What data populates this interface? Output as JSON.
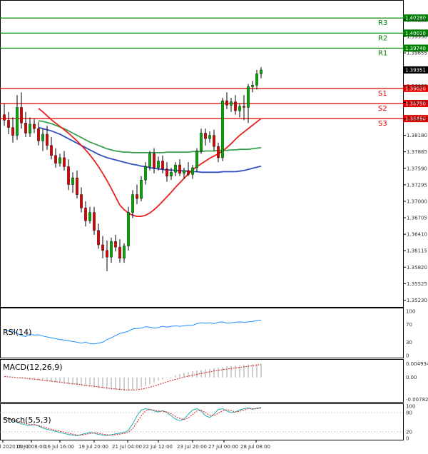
{
  "chart_data": {
    "type": "candlestick",
    "main": {
      "y_ticks": [
        "1.40245",
        "1.39950",
        "1.39655",
        "1.39360",
        "1.39065",
        "1.38770",
        "1.38475",
        "1.38180",
        "1.37885",
        "1.37590",
        "1.37295",
        "1.37000",
        "1.36705",
        "1.36410",
        "1.36115",
        "1.35820",
        "1.35525",
        "1.35230"
      ],
      "ylim": [
        1.3516,
        1.405
      ],
      "current_price": {
        "label": "1.39351",
        "value": 1.39351
      },
      "levels": [
        {
          "name": "R3",
          "label": "1.40280",
          "value": 1.4028,
          "kind": "resistance",
          "color": "#008000"
        },
        {
          "name": "R2",
          "label": "1.40010",
          "value": 1.4001,
          "kind": "resistance",
          "color": "#008000"
        },
        {
          "name": "R1",
          "label": "1.39740",
          "value": 1.3974,
          "kind": "resistance",
          "color": "#008000"
        },
        {
          "name": "S1",
          "label": "1.39020",
          "value": 1.3902,
          "kind": "support",
          "color": "#e00000"
        },
        {
          "name": "S2",
          "label": "1.38750",
          "value": 1.3875,
          "kind": "support",
          "color": "#e00000"
        },
        {
          "name": "S3",
          "label": "1.38480",
          "value": 1.3848,
          "kind": "support",
          "color": "#e00000"
        }
      ],
      "candles": [
        [
          1.3855,
          1.3875,
          1.3835,
          1.3845
        ],
        [
          1.3845,
          1.386,
          1.382,
          1.3832
        ],
        [
          1.3832,
          1.385,
          1.3805,
          1.3818
        ],
        [
          1.3818,
          1.389,
          1.381,
          1.3868
        ],
        [
          1.3868,
          1.3895,
          1.383,
          1.384
        ],
        [
          1.384,
          1.386,
          1.3815,
          1.3822
        ],
        [
          1.3822,
          1.385,
          1.3815,
          1.3838
        ],
        [
          1.3838,
          1.3848,
          1.3822,
          1.383
        ],
        [
          1.383,
          1.3842,
          1.38,
          1.3808
        ],
        [
          1.3808,
          1.383,
          1.379,
          1.382
        ],
        [
          1.382,
          1.3835,
          1.3792,
          1.38
        ],
        [
          1.38,
          1.3815,
          1.3775,
          1.3782
        ],
        [
          1.3782,
          1.3795,
          1.376,
          1.3768
        ],
        [
          1.3768,
          1.3785,
          1.3762,
          1.3778
        ],
        [
          1.3778,
          1.379,
          1.3755,
          1.3762
        ],
        [
          1.3762,
          1.3775,
          1.372,
          1.373
        ],
        [
          1.373,
          1.3752,
          1.3715,
          1.3742
        ],
        [
          1.3742,
          1.3755,
          1.3705,
          1.3712
        ],
        [
          1.3712,
          1.3725,
          1.368,
          1.3688
        ],
        [
          1.3688,
          1.37,
          1.3655,
          1.3665
        ],
        [
          1.3665,
          1.369,
          1.366,
          1.368
        ],
        [
          1.368,
          1.369,
          1.364,
          1.3648
        ],
        [
          1.3648,
          1.366,
          1.3615,
          1.3622
        ],
        [
          1.3622,
          1.3638,
          1.3598,
          1.3612
        ],
        [
          1.3612,
          1.363,
          1.3575,
          1.36
        ],
        [
          1.36,
          1.3635,
          1.359,
          1.3628
        ],
        [
          1.3628,
          1.364,
          1.361,
          1.3618
        ],
        [
          1.3618,
          1.3632,
          1.359,
          1.3598
        ],
        [
          1.3598,
          1.3625,
          1.359,
          1.362
        ],
        [
          1.362,
          1.369,
          1.3612,
          1.368
        ],
        [
          1.368,
          1.372,
          1.367,
          1.3712
        ],
        [
          1.3712,
          1.373,
          1.3695,
          1.3705
        ],
        [
          1.3705,
          1.3745,
          1.37,
          1.3738
        ],
        [
          1.3738,
          1.377,
          1.373,
          1.3762
        ],
        [
          1.3762,
          1.379,
          1.3755,
          1.3785
        ],
        [
          1.3785,
          1.3795,
          1.375,
          1.376
        ],
        [
          1.376,
          1.378,
          1.3755,
          1.3772
        ],
        [
          1.3772,
          1.3782,
          1.375,
          1.3758
        ],
        [
          1.3758,
          1.377,
          1.3735,
          1.3745
        ],
        [
          1.3745,
          1.376,
          1.3738,
          1.3752
        ],
        [
          1.3752,
          1.377,
          1.3745,
          1.3765
        ],
        [
          1.3765,
          1.3775,
          1.3745,
          1.375
        ],
        [
          1.375,
          1.376,
          1.374,
          1.3755
        ],
        [
          1.3755,
          1.377,
          1.3745,
          1.3748
        ],
        [
          1.3748,
          1.3765,
          1.374,
          1.376
        ],
        [
          1.376,
          1.3795,
          1.3752,
          1.379
        ],
        [
          1.379,
          1.383,
          1.3785,
          1.3822
        ],
        [
          1.3822,
          1.383,
          1.38,
          1.3812
        ],
        [
          1.3812,
          1.3825,
          1.3805,
          1.3818
        ],
        [
          1.3818,
          1.3828,
          1.379,
          1.3798
        ],
        [
          1.3798,
          1.3805,
          1.377,
          1.3778
        ],
        [
          1.3778,
          1.3885,
          1.3772,
          1.388
        ],
        [
          1.388,
          1.3895,
          1.3865,
          1.3872
        ],
        [
          1.3872,
          1.3885,
          1.386,
          1.3878
        ],
        [
          1.3878,
          1.389,
          1.3855,
          1.3862
        ],
        [
          1.3862,
          1.3875,
          1.385,
          1.387
        ],
        [
          1.387,
          1.389,
          1.3845,
          1.3868
        ],
        [
          1.3868,
          1.391,
          1.384,
          1.3905
        ],
        [
          1.3905,
          1.3915,
          1.3895,
          1.3908
        ],
        [
          1.3908,
          1.3935,
          1.39,
          1.3928
        ],
        [
          1.3928,
          1.394,
          1.392,
          1.3935
        ]
      ],
      "ma_fast": [
        1.3866,
        1.386,
        1.3853,
        1.3846,
        1.384,
        1.3834,
        1.3828,
        1.3822,
        1.3815,
        1.3808,
        1.38,
        1.3792,
        1.3783,
        1.3773,
        1.3762,
        1.375,
        1.3737,
        1.3723,
        1.3708,
        1.3693,
        1.3685,
        1.3679,
        1.3675,
        1.3673,
        1.3673,
        1.3675,
        1.3679,
        1.3685,
        1.3692,
        1.37,
        1.3708,
        1.3716,
        1.3725,
        1.3733,
        1.3741,
        1.3749,
        1.3756,
        1.3762,
        1.3767,
        1.3772,
        1.3777,
        1.3781,
        1.3785,
        1.379,
        1.3796,
        1.3803,
        1.3811,
        1.3818,
        1.3824,
        1.383,
        1.3836,
        1.3842,
        1.3848
      ],
      "ma_mid": [
        1.3844,
        1.3843,
        1.3841,
        1.3839,
        1.3836,
        1.3833,
        1.383,
        1.3826,
        1.3822,
        1.3818,
        1.3814,
        1.381,
        1.3806,
        1.3803,
        1.38,
        1.3797,
        1.3794,
        1.3792,
        1.379,
        1.3789,
        1.3788,
        1.3788,
        1.3787,
        1.3787,
        1.3787,
        1.3787,
        1.3787,
        1.3787,
        1.3787,
        1.3787,
        1.3788,
        1.3788,
        1.3788,
        1.3788,
        1.3788,
        1.3788,
        1.3789,
        1.3789,
        1.3789,
        1.379,
        1.379,
        1.379,
        1.3791,
        1.3791,
        1.3791,
        1.3792,
        1.3792,
        1.3793,
        1.3793,
        1.3793,
        1.3794,
        1.3795,
        1.3796
      ],
      "ma_slow": [
        1.3832,
        1.383,
        1.3828,
        1.3826,
        1.3823,
        1.382,
        1.3816,
        1.3812,
        1.3808,
        1.3804,
        1.38,
        1.3796,
        1.3792,
        1.3788,
        1.3784,
        1.3781,
        1.3778,
        1.3776,
        1.3774,
        1.3772,
        1.377,
        1.3768,
        1.3766,
        1.3765,
        1.3763,
        1.3762,
        1.376,
        1.3759,
        1.3758,
        1.3757,
        1.3756,
        1.3756,
        1.3755,
        1.3755,
        1.3754,
        1.3754,
        1.3753,
        1.3753,
        1.3752,
        1.3752,
        1.3752,
        1.3752,
        1.3752,
        1.3753,
        1.3753,
        1.3753,
        1.3753,
        1.3754,
        1.3755,
        1.3757,
        1.3759,
        1.3761,
        1.3763
      ]
    },
    "rsi": {
      "label": "RSI(14)",
      "ticks": [
        "100",
        "70",
        "30",
        "0"
      ],
      "values": [
        56,
        55,
        55,
        50,
        45,
        43,
        48,
        46,
        47,
        44,
        42,
        40,
        38,
        36,
        35,
        33,
        32,
        30,
        28,
        30,
        27,
        26,
        28,
        30,
        36,
        40,
        45,
        50,
        52,
        55,
        60,
        61,
        62,
        65,
        64,
        62,
        63,
        66,
        64,
        66,
        67,
        66,
        67,
        68,
        68,
        72,
        74,
        73,
        74,
        72,
        75,
        76,
        73,
        74,
        75,
        76,
        75,
        76,
        77,
        79,
        80
      ]
    },
    "macd": {
      "label": "MACD(12,26,9)",
      "ticks": [
        "0.004934",
        "0.00",
        "-0.007827"
      ],
      "ylim": [
        -0.008,
        0.0053
      ],
      "histogram": [
        0.0002,
        0.0001,
        -0.0001,
        -0.0002,
        -0.0003,
        -0.0004,
        -0.0006,
        -0.0008,
        -0.001,
        -0.0012,
        -0.0014,
        -0.0016,
        -0.0018,
        -0.002,
        -0.0022,
        -0.0024,
        -0.0026,
        -0.0028,
        -0.003,
        -0.0032,
        -0.0034,
        -0.0036,
        -0.0038,
        -0.004,
        -0.0042,
        -0.0044,
        -0.0046,
        -0.0047,
        -0.0048,
        -0.0047,
        -0.0045,
        -0.0041,
        -0.0036,
        -0.003,
        -0.0024,
        -0.0018,
        -0.0012,
        -0.0007,
        -0.0002,
        0.0003,
        0.0008,
        0.0012,
        0.0016,
        0.0019,
        0.0022,
        0.0025,
        0.0027,
        0.0029,
        0.0031,
        0.0033,
        0.0035,
        0.0037,
        0.0039,
        0.0041,
        0.0043,
        0.0044,
        0.0045,
        0.0046,
        0.0047,
        0.0048,
        0.0049
      ],
      "signal": [
        0.0003,
        0.0002,
        0.0001,
        -0.0001,
        -0.0002,
        -0.0003,
        -0.0005,
        -0.0006,
        -0.0008,
        -0.001,
        -0.0012,
        -0.0013,
        -0.0015,
        -0.0017,
        -0.0019,
        -0.0021,
        -0.0023,
        -0.0024,
        -0.0026,
        -0.0028,
        -0.003,
        -0.0032,
        -0.0034,
        -0.0036,
        -0.0038,
        -0.004,
        -0.0041,
        -0.0043,
        -0.0044,
        -0.0045,
        -0.0045,
        -0.0044,
        -0.0042,
        -0.0039,
        -0.0035,
        -0.0031,
        -0.0026,
        -0.0021,
        -0.0016,
        -0.0011,
        -0.0007,
        -0.0003,
        0.0001,
        0.0005,
        0.0008,
        0.0011,
        0.0014,
        0.0017,
        0.002,
        0.0023,
        0.0025,
        0.0028,
        0.003,
        0.0032,
        0.0034,
        0.0036,
        0.0038,
        0.004,
        0.0042,
        0.0044,
        0.0046
      ]
    },
    "stoch": {
      "label": "Stoch(5,5,3)",
      "ticks": [
        "100",
        "80",
        "20",
        "0"
      ],
      "k": [
        65,
        60,
        55,
        50,
        45,
        42,
        40,
        43,
        38,
        32,
        28,
        25,
        22,
        18,
        15,
        12,
        10,
        8,
        12,
        15,
        18,
        16,
        12,
        10,
        9,
        11,
        14,
        16,
        18,
        25,
        45,
        70,
        88,
        92,
        90,
        85,
        82,
        86,
        80,
        70,
        60,
        55,
        60,
        75,
        88,
        92,
        85,
        70,
        65,
        75,
        90,
        92,
        85,
        80,
        82,
        88,
        92,
        95,
        90,
        94,
        96
      ],
      "d": [
        62,
        61,
        58,
        54,
        50,
        46,
        43,
        42,
        40,
        36,
        32,
        28,
        25,
        22,
        19,
        16,
        13,
        10,
        10,
        12,
        15,
        17,
        16,
        13,
        11,
        10,
        11,
        13,
        15,
        19,
        30,
        50,
        70,
        85,
        90,
        88,
        85,
        84,
        82,
        76,
        68,
        62,
        58,
        64,
        74,
        85,
        88,
        80,
        72,
        70,
        78,
        86,
        89,
        86,
        82,
        84,
        88,
        92,
        92,
        92,
        94
      ]
    },
    "x_labels": [
      "14 Jul 2020 00:00",
      "15 Jul 08:00",
      "16 Jul 16:00",
      "19 Jul 20:00",
      "21 Jul 04:00",
      "22 Jul 12:00",
      "23 Jul 20:00",
      "27 Jul 00:00",
      "28 Jul 08:00"
    ],
    "colors": {
      "bull": "#00aa00",
      "bear": "#e00000",
      "ma_fast": "#e82020",
      "ma_mid": "#3ca050",
      "ma_slow": "#3050c0",
      "rsi": "#1e90ff",
      "macd_signal": "#d02020",
      "stoch_k": "#20b0b0",
      "stoch_d": "#e02020",
      "price_tag": "#000000"
    }
  }
}
